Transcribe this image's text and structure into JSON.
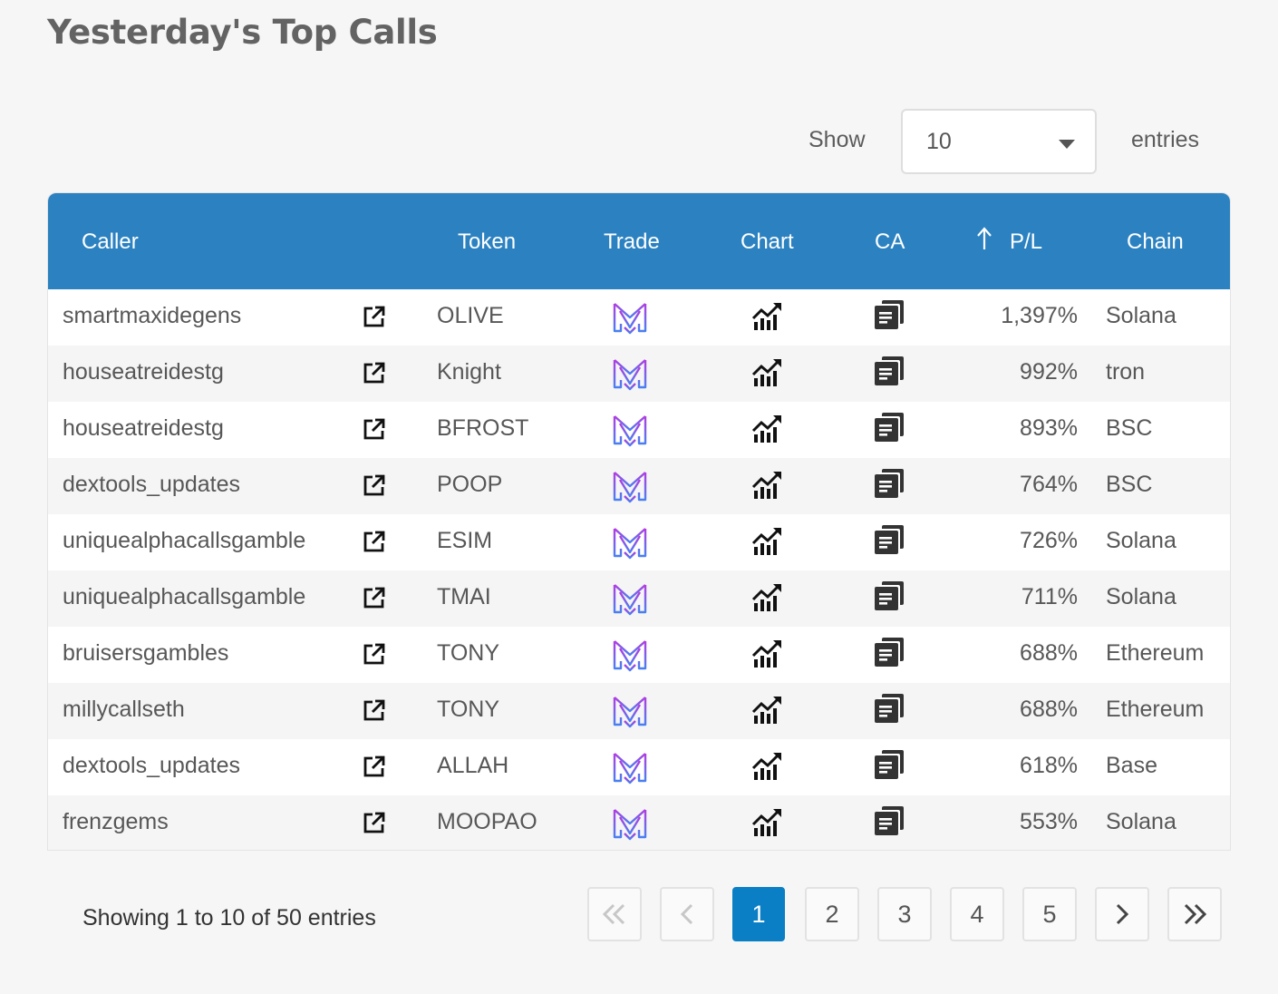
{
  "page": {
    "title": "Yesterday's Top Calls"
  },
  "length_menu": {
    "show_label": "Show",
    "value": "10",
    "entries_label": "entries"
  },
  "table": {
    "columns": {
      "caller": "Caller",
      "token": "Token",
      "trade": "Trade",
      "chart": "Chart",
      "ca": "CA",
      "pl": "P/L",
      "chain": "Chain"
    },
    "sorted_column": "pl",
    "sort_direction": "ascending-arrow",
    "rows": [
      {
        "caller": "smartmaxidegens",
        "token": "OLIVE",
        "pl": "1,397%",
        "chain": "Solana"
      },
      {
        "caller": "houseatreidestg",
        "token": "Knight",
        "pl": "992%",
        "chain": "tron"
      },
      {
        "caller": "houseatreidestg",
        "token": "BFROST",
        "pl": "893%",
        "chain": "BSC"
      },
      {
        "caller": "dextools_updates",
        "token": "POOP",
        "pl": "764%",
        "chain": "BSC"
      },
      {
        "caller": "uniquealphacallsgamble",
        "token": "ESIM",
        "pl": "726%",
        "chain": "Solana"
      },
      {
        "caller": "uniquealphacallsgamble",
        "token": "TMAI",
        "pl": "711%",
        "chain": "Solana"
      },
      {
        "caller": "bruisersgambles",
        "token": "TONY",
        "pl": "688%",
        "chain": "Ethereum"
      },
      {
        "caller": "millycallseth",
        "token": "TONY",
        "pl": "688%",
        "chain": "Ethereum"
      },
      {
        "caller": "dextools_updates",
        "token": "ALLAH",
        "pl": "618%",
        "chain": "Base"
      },
      {
        "caller": "frenzgems",
        "token": "MOOPAO",
        "pl": "553%",
        "chain": "Solana"
      }
    ],
    "icons": {
      "link": "external-link-icon",
      "trade": "trade-logo-icon",
      "chart": "chart-icon",
      "ca": "copy-icon"
    }
  },
  "footer": {
    "info": "Showing 1 to 10 of 50 entries"
  },
  "pagination": {
    "pages": [
      "1",
      "2",
      "3",
      "4",
      "5"
    ],
    "current": "1",
    "first_icon": "double-chevron-left-icon",
    "prev_icon": "chevron-left-icon",
    "next_icon": "chevron-right-icon",
    "last_icon": "double-chevron-right-icon"
  },
  "colors": {
    "header_bg": "#2c82c1",
    "active_page": "#0a7fc5",
    "background": "#f6f6f6"
  }
}
